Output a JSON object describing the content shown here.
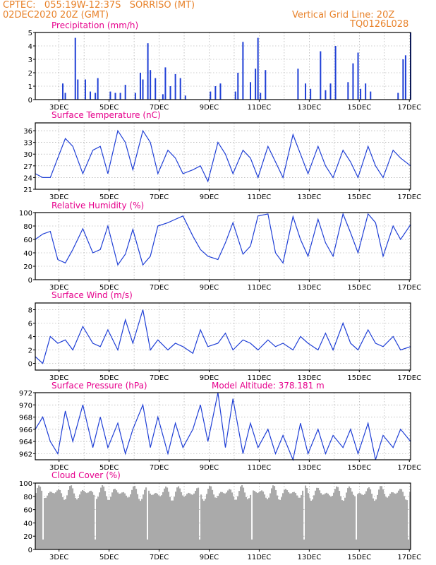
{
  "header": {
    "line1_left": "CPTEC:   055:19W-12:37S   SORRISO (MT)",
    "line2_left": "02DEC2020 20Z (GMT)",
    "line1_right": "Vertical Grid Line: 20Z",
    "line2_right": "TQ0126L028"
  },
  "colors": {
    "header": "#e8822a",
    "title": "#e6008c",
    "line": "#1f3fd6",
    "cloud": "#aaaaaa",
    "grid": "#999999"
  },
  "chart_data": [
    {
      "type": "bar",
      "title": "Precipitation (mm/h)",
      "x_tick_labels": [
        "3DEC",
        "5DEC",
        "7DEC",
        "9DEC",
        "11DEC",
        "13DEC",
        "15DEC",
        "17DEC"
      ],
      "x_range_days": [
        2.0,
        17.0
      ],
      "ylim": [
        0,
        5
      ],
      "yticks": [
        0,
        1,
        2,
        3,
        4,
        5
      ],
      "x": [
        3.1,
        3.2,
        3.6,
        3.7,
        4.0,
        4.2,
        4.4,
        4.5,
        5.0,
        5.2,
        5.4,
        5.6,
        6.0,
        6.2,
        6.3,
        6.5,
        6.6,
        6.8,
        7.1,
        7.2,
        7.4,
        7.6,
        7.8,
        8.0,
        9.0,
        9.2,
        9.4,
        10.0,
        10.1,
        10.3,
        10.6,
        10.8,
        10.9,
        11.0,
        11.2,
        12.5,
        12.8,
        13.0,
        13.4,
        13.6,
        13.8,
        14.0,
        14.5,
        14.7,
        14.9,
        15.0,
        15.2,
        15.4,
        16.5,
        16.7,
        16.8,
        17.0
      ],
      "values": [
        1.2,
        0.5,
        4.6,
        1.5,
        1.5,
        0.6,
        0.5,
        1.6,
        0.6,
        0.5,
        0.5,
        1.1,
        0.5,
        2.0,
        1.5,
        4.2,
        2.2,
        1.6,
        0.4,
        2.4,
        1.0,
        1.9,
        1.6,
        0.3,
        0.6,
        1.0,
        1.2,
        0.6,
        2.0,
        4.3,
        1.3,
        2.3,
        4.6,
        0.5,
        2.2,
        2.3,
        1.2,
        0.8,
        3.6,
        0.7,
        1.2,
        4.0,
        1.3,
        2.7,
        3.5,
        0.8,
        1.2,
        0.6,
        0.5,
        3.0,
        3.3,
        5.0
      ],
      "total_hours_shown": 360
    },
    {
      "type": "line",
      "title": "Surface Temperature (nC)",
      "x_tick_labels": [
        "3DEC",
        "5DEC",
        "7DEC",
        "9DEC",
        "11DEC",
        "13DEC",
        "15DEC",
        "17DEC"
      ],
      "ylim": [
        21,
        38
      ],
      "yticks": [
        21,
        24,
        27,
        30,
        33,
        36
      ],
      "x": [
        2.0,
        2.3,
        2.6,
        2.9,
        3.2,
        3.5,
        3.9,
        4.3,
        4.6,
        4.9,
        5.3,
        5.6,
        5.9,
        6.3,
        6.6,
        6.9,
        7.3,
        7.6,
        7.9,
        8.3,
        8.6,
        8.9,
        9.3,
        9.6,
        9.9,
        10.3,
        10.6,
        10.9,
        11.3,
        11.6,
        11.9,
        12.3,
        12.6,
        12.9,
        13.3,
        13.6,
        13.9,
        14.3,
        14.6,
        14.9,
        15.3,
        15.6,
        15.9,
        16.3,
        16.6,
        17.0
      ],
      "values": [
        25,
        24,
        24,
        29,
        34,
        32,
        25,
        31,
        32,
        25,
        36,
        33,
        26,
        36,
        33,
        25,
        31,
        29,
        25,
        26,
        27,
        23,
        33,
        30,
        25,
        31,
        29,
        24,
        32,
        28,
        24,
        35,
        30,
        25,
        32,
        27,
        24,
        31,
        28,
        24,
        32,
        27,
        24,
        31,
        29,
        27
      ]
    },
    {
      "type": "line",
      "title": "Relative Humidity (%)",
      "x_tick_labels": [
        "3DEC",
        "5DEC",
        "7DEC",
        "9DEC",
        "11DEC",
        "13DEC",
        "15DEC",
        "17DEC"
      ],
      "ylim": [
        0,
        100
      ],
      "yticks": [
        0,
        20,
        40,
        60,
        80,
        100
      ],
      "x": [
        2.0,
        2.3,
        2.6,
        2.9,
        3.2,
        3.5,
        3.9,
        4.3,
        4.6,
        4.9,
        5.3,
        5.6,
        5.9,
        6.3,
        6.6,
        6.9,
        7.3,
        7.6,
        7.9,
        8.3,
        8.6,
        8.9,
        9.3,
        9.6,
        9.9,
        10.3,
        10.6,
        10.9,
        11.3,
        11.6,
        11.9,
        12.3,
        12.6,
        12.9,
        13.3,
        13.6,
        13.9,
        14.3,
        14.6,
        14.9,
        15.3,
        15.6,
        15.9,
        16.3,
        16.6,
        17.0
      ],
      "values": [
        60,
        68,
        72,
        30,
        25,
        45,
        76,
        40,
        45,
        80,
        22,
        38,
        75,
        22,
        35,
        80,
        85,
        90,
        95,
        65,
        45,
        35,
        30,
        55,
        85,
        38,
        50,
        95,
        98,
        40,
        25,
        94,
        60,
        35,
        90,
        55,
        35,
        98,
        70,
        40,
        98,
        85,
        35,
        80,
        60,
        82
      ]
    },
    {
      "type": "line",
      "title": "Surface Wind (m/s)",
      "x_tick_labels": [
        "3DEC",
        "5DEC",
        "7DEC",
        "9DEC",
        "11DEC",
        "13DEC",
        "15DEC",
        "17DEC"
      ],
      "ylim": [
        -1,
        9
      ],
      "yticks": [
        0,
        2,
        4,
        6,
        8
      ],
      "x": [
        2.0,
        2.3,
        2.6,
        2.9,
        3.2,
        3.5,
        3.9,
        4.3,
        4.6,
        4.9,
        5.3,
        5.6,
        5.9,
        6.3,
        6.6,
        6.9,
        7.3,
        7.6,
        7.9,
        8.3,
        8.6,
        8.9,
        9.3,
        9.6,
        9.9,
        10.3,
        10.6,
        10.9,
        11.3,
        11.6,
        11.9,
        12.3,
        12.6,
        12.9,
        13.3,
        13.6,
        13.9,
        14.3,
        14.6,
        14.9,
        15.3,
        15.6,
        15.9,
        16.3,
        16.6,
        17.0
      ],
      "values": [
        1,
        0,
        4,
        3,
        3.5,
        2,
        5.5,
        3,
        2.5,
        5,
        2,
        6.5,
        3,
        8,
        2,
        3.5,
        2,
        3,
        2.5,
        1.5,
        5,
        2.5,
        3,
        4.5,
        2,
        3.5,
        3,
        2,
        3.5,
        2.5,
        3,
        2,
        4,
        3,
        2,
        4.5,
        2,
        6,
        3,
        2,
        5,
        3,
        2.5,
        4,
        2,
        2.5
      ]
    },
    {
      "type": "line",
      "title": "Surface Pressure (hPa)",
      "annotation": "Model Altitude: 378.181  m",
      "x_tick_labels": [
        "3DEC",
        "5DEC",
        "7DEC",
        "9DEC",
        "11DEC",
        "13DEC",
        "15DEC",
        "17DEC"
      ],
      "ylim": [
        961,
        972
      ],
      "yticks": [
        962,
        964,
        966,
        968,
        970,
        972
      ],
      "x": [
        2.0,
        2.3,
        2.6,
        2.9,
        3.2,
        3.5,
        3.9,
        4.3,
        4.6,
        4.9,
        5.3,
        5.6,
        5.9,
        6.3,
        6.6,
        6.9,
        7.3,
        7.6,
        7.9,
        8.3,
        8.6,
        8.9,
        9.3,
        9.6,
        9.9,
        10.3,
        10.6,
        10.9,
        11.3,
        11.6,
        11.9,
        12.3,
        12.6,
        12.9,
        13.3,
        13.6,
        13.9,
        14.3,
        14.6,
        14.9,
        15.3,
        15.6,
        15.9,
        16.3,
        16.6,
        17.0
      ],
      "values": [
        966,
        968,
        964,
        962,
        969,
        964,
        970,
        963,
        968,
        963,
        967,
        962,
        966,
        970,
        963,
        968,
        962,
        967,
        963,
        966,
        970,
        964,
        972,
        963,
        971,
        962,
        967,
        963,
        966,
        962,
        965,
        961,
        967,
        962,
        966,
        962,
        965,
        963,
        966,
        962,
        967,
        961,
        965,
        963,
        966,
        964
      ]
    },
    {
      "type": "bar",
      "title": "Cloud Cover (%)",
      "x_tick_labels": [
        "3DEC",
        "5DEC",
        "7DEC",
        "9DEC",
        "11DEC",
        "13DEC",
        "15DEC",
        "17DEC"
      ],
      "ylim": [
        0,
        100
      ],
      "yticks": [
        0,
        20,
        40,
        60,
        80,
        100
      ],
      "approx_level_pct": 85
    }
  ]
}
